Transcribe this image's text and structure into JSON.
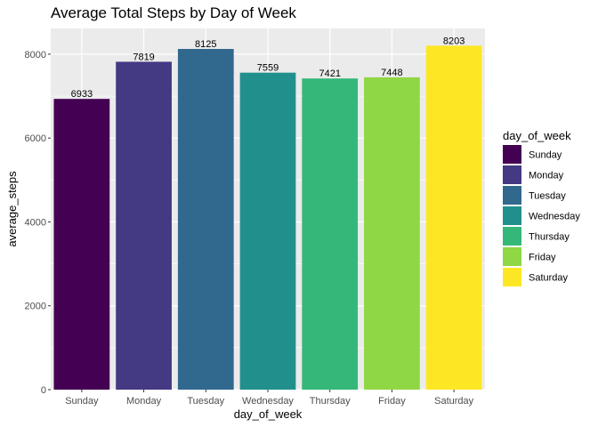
{
  "chart_data": {
    "type": "bar",
    "title": "Average Total Steps by Day of Week",
    "xlabel": "day_of_week",
    "ylabel": "average_steps",
    "categories": [
      "Sunday",
      "Monday",
      "Tuesday",
      "Wednesday",
      "Thursday",
      "Friday",
      "Saturday"
    ],
    "values": [
      6933,
      7819,
      8125,
      7559,
      7421,
      7448,
      8203
    ],
    "data_labels": [
      "6933",
      "7819",
      "8125",
      "7559",
      "7421",
      "7448",
      "8203"
    ],
    "colors": [
      "#440154",
      "#443983",
      "#31688e",
      "#21908d",
      "#35b779",
      "#8fd744",
      "#fde725"
    ],
    "y_ticks": [
      0,
      2000,
      4000,
      6000,
      8000
    ],
    "y_tick_labels": [
      "0",
      "2000",
      "4000",
      "6000",
      "8000"
    ],
    "ylim": [
      0,
      8613
    ],
    "grid": true,
    "panel_background": "#ebebeb",
    "grid_color": "#ffffff",
    "legend": {
      "title": "day_of_week",
      "placement": "right",
      "entries": [
        "Sunday",
        "Monday",
        "Tuesday",
        "Wednesday",
        "Thursday",
        "Friday",
        "Saturday"
      ]
    }
  }
}
